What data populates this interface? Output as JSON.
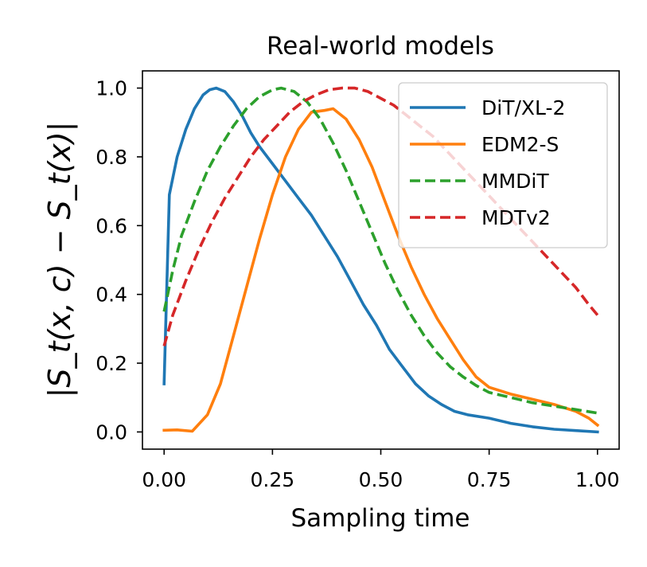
{
  "chart_data": {
    "type": "line",
    "title": "Real-world models",
    "xlabel": "Sampling time",
    "ylabel": "|S_t(x, c) − S_t(x)|",
    "xlim": [
      -0.05,
      1.05
    ],
    "ylim": [
      -0.05,
      1.05
    ],
    "xticks": [
      0.0,
      0.25,
      0.5,
      0.75,
      1.0
    ],
    "xtick_labels": [
      "0.00",
      "0.25",
      "0.50",
      "0.75",
      "1.00"
    ],
    "yticks": [
      0.0,
      0.2,
      0.4,
      0.6,
      0.8,
      1.0
    ],
    "ytick_labels": [
      "0.0",
      "0.2",
      "0.4",
      "0.6",
      "0.8",
      "1.0"
    ],
    "legend_position": "top-right",
    "grid": false,
    "series": [
      {
        "name": "DiT/XL-2",
        "color": "#1f77b4",
        "dash": "solid",
        "x": [
          0.0,
          0.012,
          0.03,
          0.05,
          0.07,
          0.09,
          0.105,
          0.12,
          0.14,
          0.16,
          0.18,
          0.2,
          0.22,
          0.25,
          0.28,
          0.31,
          0.34,
          0.37,
          0.4,
          0.43,
          0.46,
          0.49,
          0.52,
          0.55,
          0.58,
          0.61,
          0.64,
          0.67,
          0.7,
          0.75,
          0.8,
          0.85,
          0.9,
          0.95,
          1.0
        ],
        "y": [
          0.14,
          0.69,
          0.8,
          0.88,
          0.94,
          0.98,
          0.995,
          1.0,
          0.99,
          0.96,
          0.92,
          0.87,
          0.83,
          0.78,
          0.73,
          0.68,
          0.63,
          0.57,
          0.51,
          0.44,
          0.37,
          0.31,
          0.24,
          0.19,
          0.14,
          0.105,
          0.08,
          0.06,
          0.05,
          0.04,
          0.025,
          0.015,
          0.008,
          0.004,
          0.0
        ]
      },
      {
        "name": "EDM2-S",
        "color": "#ff7f0e",
        "dash": "solid",
        "x": [
          0.0,
          0.03,
          0.065,
          0.1,
          0.13,
          0.16,
          0.19,
          0.22,
          0.25,
          0.28,
          0.31,
          0.34,
          0.37,
          0.39,
          0.42,
          0.45,
          0.48,
          0.51,
          0.54,
          0.57,
          0.6,
          0.63,
          0.66,
          0.69,
          0.72,
          0.75,
          0.8,
          0.85,
          0.9,
          0.95,
          0.98,
          1.0
        ],
        "y": [
          0.005,
          0.006,
          0.002,
          0.05,
          0.14,
          0.28,
          0.42,
          0.56,
          0.69,
          0.8,
          0.88,
          0.93,
          0.935,
          0.94,
          0.91,
          0.85,
          0.77,
          0.67,
          0.57,
          0.48,
          0.4,
          0.33,
          0.27,
          0.21,
          0.16,
          0.13,
          0.11,
          0.095,
          0.08,
          0.06,
          0.04,
          0.02
        ]
      },
      {
        "name": "MMDiT",
        "color": "#2ca02c",
        "dash": "dashed",
        "x": [
          0.0,
          0.02,
          0.04,
          0.07,
          0.1,
          0.13,
          0.16,
          0.19,
          0.22,
          0.25,
          0.27,
          0.3,
          0.33,
          0.36,
          0.39,
          0.42,
          0.45,
          0.48,
          0.51,
          0.54,
          0.57,
          0.6,
          0.63,
          0.66,
          0.69,
          0.72,
          0.75,
          0.8,
          0.85,
          0.9,
          0.95,
          1.0
        ],
        "y": [
          0.35,
          0.47,
          0.57,
          0.67,
          0.76,
          0.83,
          0.89,
          0.94,
          0.975,
          0.995,
          1.0,
          0.99,
          0.96,
          0.91,
          0.84,
          0.76,
          0.67,
          0.58,
          0.49,
          0.41,
          0.34,
          0.28,
          0.23,
          0.19,
          0.16,
          0.135,
          0.115,
          0.1,
          0.085,
          0.075,
          0.065,
          0.055
        ]
      },
      {
        "name": "MDTv2",
        "color": "#d62728",
        "dash": "dashed",
        "x": [
          0.0,
          0.02,
          0.05,
          0.08,
          0.11,
          0.14,
          0.17,
          0.2,
          0.23,
          0.26,
          0.29,
          0.32,
          0.35,
          0.38,
          0.41,
          0.44,
          0.47,
          0.5,
          0.53,
          0.56,
          0.59,
          0.62,
          0.65,
          0.68,
          0.71,
          0.74,
          0.77,
          0.8,
          0.83,
          0.86,
          0.89,
          0.92,
          0.95,
          0.98,
          1.0
        ],
        "y": [
          0.25,
          0.34,
          0.44,
          0.53,
          0.61,
          0.68,
          0.74,
          0.8,
          0.85,
          0.89,
          0.93,
          0.96,
          0.98,
          0.995,
          1.0,
          1.0,
          0.99,
          0.97,
          0.95,
          0.92,
          0.89,
          0.86,
          0.82,
          0.78,
          0.74,
          0.7,
          0.66,
          0.62,
          0.58,
          0.54,
          0.5,
          0.46,
          0.42,
          0.37,
          0.34
        ]
      }
    ]
  }
}
